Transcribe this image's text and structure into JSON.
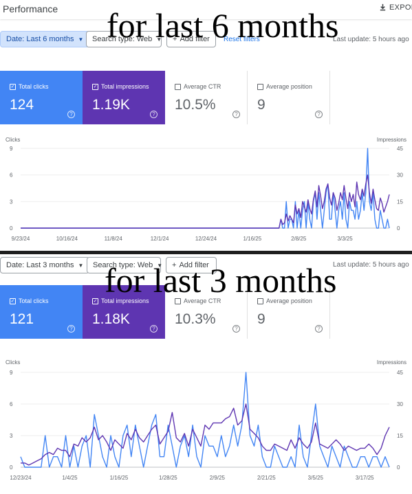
{
  "header": {
    "title": "Performance",
    "export_label": "EXPORT"
  },
  "overlays": {
    "top": "for last 6 months",
    "bottom": "for last 3 months"
  },
  "colors": {
    "clicks": "#4285f4",
    "impressions": "#5e35b1"
  },
  "panels": [
    {
      "filters": {
        "date": "Date: Last 6 months",
        "search_type": "Search type: Web",
        "add_filter": "Add filter",
        "reset": "Reset filters",
        "last_update": "Last update: 5 hours ago"
      },
      "cards": [
        {
          "label": "Total clicks",
          "value": "124",
          "checked": true
        },
        {
          "label": "Total impressions",
          "value": "1.19K",
          "checked": true
        },
        {
          "label": "Average CTR",
          "value": "10.5%",
          "checked": false
        },
        {
          "label": "Average position",
          "value": "9",
          "checked": false
        }
      ]
    },
    {
      "filters": {
        "date": "Date: Last 3 months",
        "search_type": "Search type: Web",
        "add_filter": "Add filter",
        "last_update": "Last update: 5 hours ago"
      },
      "cards": [
        {
          "label": "Total clicks",
          "value": "121",
          "checked": true
        },
        {
          "label": "Total impressions",
          "value": "1.18K",
          "checked": true
        },
        {
          "label": "Average CTR",
          "value": "10.3%",
          "checked": false
        },
        {
          "label": "Average position",
          "value": "9",
          "checked": false
        }
      ]
    }
  ],
  "chart_data": [
    {
      "type": "line",
      "left_axis_label": "Clicks",
      "right_axis_label": "Impressions",
      "left_ticks": [
        0,
        3,
        6,
        9
      ],
      "right_ticks": [
        0,
        15,
        30,
        45
      ],
      "ylim_left": [
        0,
        9
      ],
      "ylim_right": [
        0,
        45
      ],
      "x_ticks": [
        "9/23/24",
        "10/16/24",
        "11/8/24",
        "12/1/24",
        "12/24/24",
        "1/16/25",
        "2/8/25",
        "3/3/25"
      ],
      "x_range": [
        "9/23/24",
        "3/25/25"
      ],
      "series": [
        {
          "axis": "left",
          "values": [
            0,
            0,
            0,
            0,
            0,
            0,
            0,
            0,
            0,
            0,
            0,
            0,
            0,
            0,
            0,
            0,
            0,
            0,
            0,
            0,
            0,
            0,
            0,
            0,
            0,
            0,
            0,
            0,
            0,
            0,
            0,
            0,
            0,
            0,
            0,
            0,
            0,
            0,
            0,
            0,
            0,
            0,
            0,
            0,
            0,
            0,
            0,
            0,
            0,
            0,
            0,
            0,
            0,
            0,
            0,
            0,
            0,
            0,
            0,
            0,
            0,
            0,
            0,
            0,
            0,
            0,
            0,
            0,
            0,
            0,
            0,
            0,
            0,
            0,
            0,
            0,
            0,
            0,
            0,
            0,
            0,
            0,
            0,
            0,
            0,
            0,
            0,
            0,
            0,
            0,
            0,
            0,
            0,
            0,
            0,
            0,
            0,
            0,
            0,
            0,
            0,
            0,
            0,
            0,
            0,
            0,
            0,
            0,
            0,
            0,
            0,
            0,
            0,
            0,
            0,
            0,
            0,
            0,
            0,
            0,
            0,
            0,
            0,
            0,
            0,
            0,
            0,
            0,
            0,
            0,
            0,
            0,
            0,
            0,
            0,
            0,
            0,
            0,
            0,
            0,
            0,
            0,
            0,
            0,
            1,
            0,
            0,
            3,
            0,
            1,
            1,
            0,
            3,
            0,
            2,
            0,
            2,
            3,
            0,
            3,
            1,
            0,
            3,
            4,
            1,
            4,
            2,
            0,
            2,
            4,
            5,
            1,
            1,
            4,
            2,
            0,
            2,
            3,
            1,
            4,
            1,
            0,
            3,
            2,
            2,
            1,
            3,
            1,
            2,
            4,
            2,
            4,
            9,
            3,
            2,
            4,
            1,
            0,
            0,
            2,
            1,
            0,
            0,
            1,
            0
          ]
        },
        {
          "axis": "right",
          "values": [
            0,
            0,
            0,
            0,
            0,
            0,
            0,
            0,
            0,
            0,
            0,
            0,
            0,
            0,
            0,
            0,
            0,
            0,
            0,
            0,
            0,
            0,
            0,
            0,
            0,
            0,
            0,
            0,
            0,
            0,
            0,
            0,
            0,
            0,
            0,
            0,
            0,
            0,
            0,
            0,
            0,
            0,
            0,
            0,
            0,
            0,
            0,
            0,
            0,
            0,
            0,
            0,
            0,
            0,
            0,
            0,
            0,
            0,
            0,
            0,
            0,
            0,
            0,
            0,
            0,
            0,
            0,
            0,
            0,
            0,
            0,
            0,
            0,
            0,
            0,
            0,
            0,
            0,
            0,
            0,
            0,
            0,
            0,
            0,
            0,
            0,
            0,
            0,
            0,
            0,
            0,
            0,
            0,
            0,
            0,
            0,
            0,
            0,
            0,
            0,
            0,
            0,
            0,
            0,
            0,
            0,
            0,
            0,
            0,
            0,
            0,
            0,
            0,
            0,
            0,
            0,
            0,
            0,
            0,
            0,
            0,
            0,
            0,
            0,
            0,
            0,
            0,
            0,
            0,
            0,
            0,
            0,
            0,
            0,
            0,
            0,
            0,
            0,
            0,
            0,
            0,
            0,
            0,
            0,
            5,
            2,
            3,
            8,
            4,
            7,
            5,
            3,
            13,
            8,
            11,
            6,
            15,
            12,
            9,
            16,
            11,
            8,
            16,
            21,
            12,
            24,
            18,
            11,
            15,
            22,
            25,
            17,
            13,
            20,
            17,
            10,
            14,
            20,
            16,
            24,
            17,
            11,
            20,
            15,
            19,
            12,
            26,
            19,
            16,
            22,
            18,
            25,
            30,
            20,
            14,
            22,
            16,
            11,
            10,
            17,
            14,
            9,
            12,
            15,
            19
          ]
        }
      ]
    },
    {
      "type": "line",
      "left_axis_label": "Clicks",
      "right_axis_label": "Impressions",
      "left_ticks": [
        0,
        3,
        6,
        9
      ],
      "right_ticks": [
        0,
        15,
        30,
        45
      ],
      "ylim_left": [
        0,
        9
      ],
      "ylim_right": [
        0,
        45
      ],
      "x_ticks": [
        "12/23/24",
        "1/4/25",
        "1/16/25",
        "1/28/25",
        "2/9/25",
        "2/21/25",
        "3/5/25",
        "3/17/25"
      ],
      "x_range": [
        "12/23/24",
        "3/23/25"
      ],
      "series": [
        {
          "axis": "left",
          "values": [
            1,
            0,
            0,
            0,
            0,
            0,
            3,
            0,
            1,
            1,
            0,
            3,
            0,
            2,
            0,
            2,
            3,
            0,
            5,
            3,
            1,
            0,
            3,
            1,
            0,
            3,
            4,
            1,
            4,
            2,
            0,
            2,
            4,
            5,
            1,
            1,
            4,
            2,
            0,
            2,
            3,
            1,
            4,
            1,
            0,
            3,
            2,
            2,
            1,
            3,
            1,
            2,
            4,
            2,
            4,
            9,
            3,
            2,
            4,
            1,
            0,
            0,
            2,
            1,
            0,
            0,
            1,
            0,
            4,
            1,
            0,
            3,
            6,
            2,
            1,
            0,
            2,
            1,
            0,
            2,
            1,
            0,
            0,
            1,
            1,
            0,
            1,
            1,
            0,
            1,
            0
          ]
        },
        {
          "axis": "right",
          "values": [
            2,
            2,
            1,
            2,
            3,
            4,
            6,
            7,
            6,
            9,
            8,
            8,
            5,
            11,
            10,
            14,
            12,
            14,
            19,
            13,
            15,
            12,
            8,
            13,
            11,
            9,
            16,
            13,
            18,
            14,
            12,
            15,
            18,
            20,
            11,
            14,
            17,
            26,
            14,
            12,
            16,
            10,
            18,
            14,
            10,
            20,
            18,
            21,
            21,
            21,
            23,
            24,
            28,
            20,
            22,
            30,
            18,
            16,
            14,
            10,
            8,
            8,
            11,
            10,
            9,
            8,
            13,
            9,
            14,
            11,
            9,
            12,
            21,
            11,
            10,
            9,
            11,
            13,
            11,
            8,
            10,
            9,
            8,
            9,
            9,
            11,
            9,
            6,
            9,
            15,
            19
          ]
        }
      ]
    }
  ]
}
